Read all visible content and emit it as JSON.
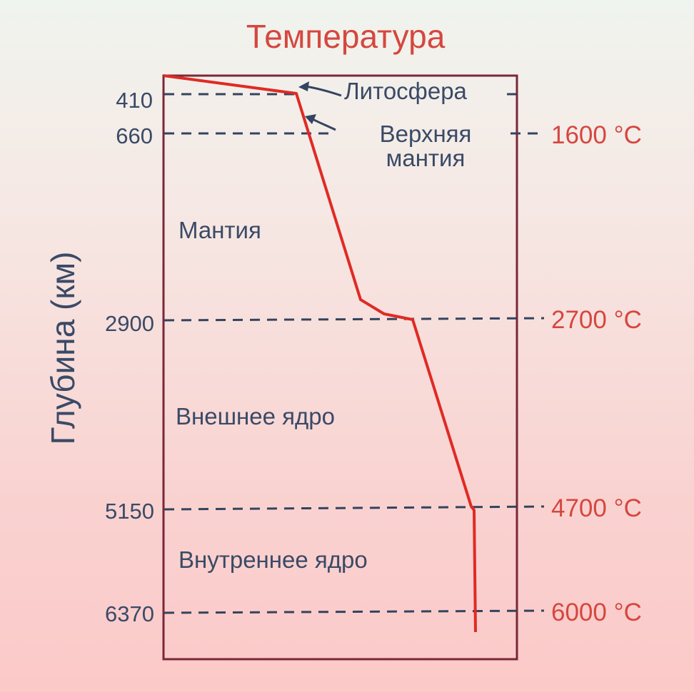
{
  "title": "Температура",
  "y_axis_title": "Глубина (км)",
  "depth_labels": [
    "410",
    "660",
    "2900",
    "5150",
    "6370"
  ],
  "temperature_labels": [
    "1600 °C",
    "2700 °C",
    "4700 °C",
    "6000 °C"
  ],
  "layers": {
    "lithosphere": "Литосфера",
    "upper_mantle_line1": "Верхняя",
    "upper_mantle_line2": "мантия",
    "mantle": "Мантия",
    "outer_core": "Внешнее ядро",
    "inner_core": "Внутреннее ядро"
  },
  "colors": {
    "title": "#d5473f",
    "temperature_curve": "#e02a24",
    "frame": "#7a2738",
    "text": "#3a4a66",
    "dashes": "#34435f"
  }
}
